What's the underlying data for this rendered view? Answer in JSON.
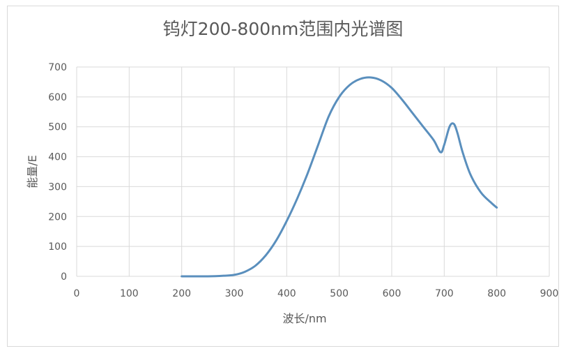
{
  "chart_data": {
    "type": "line",
    "title": "钨灯200-800nm范围内光谱图",
    "xlabel": "波长/nm",
    "ylabel": "能量/E",
    "xlim": [
      0,
      900
    ],
    "ylim": [
      0,
      700
    ],
    "xticks": [
      0,
      100,
      200,
      300,
      400,
      500,
      600,
      700,
      800,
      900
    ],
    "yticks": [
      0,
      100,
      200,
      300,
      400,
      500,
      600,
      700
    ],
    "grid": true,
    "legend": "none",
    "series": [
      {
        "color": "#5a8fbd",
        "x": [
          200,
          250,
          280,
          300,
          320,
          340,
          360,
          380,
          400,
          420,
          440,
          460,
          480,
          500,
          520,
          540,
          560,
          580,
          600,
          620,
          640,
          660,
          680,
          693,
          700,
          710,
          718,
          725,
          735,
          750,
          770,
          790,
          800
        ],
        "y": [
          0,
          0,
          2,
          5,
          15,
          35,
          70,
          120,
          185,
          260,
          345,
          440,
          535,
          600,
          640,
          660,
          665,
          655,
          630,
          590,
          545,
          500,
          455,
          415,
          440,
          500,
          510,
          480,
          415,
          340,
          280,
          245,
          230
        ]
      }
    ]
  }
}
